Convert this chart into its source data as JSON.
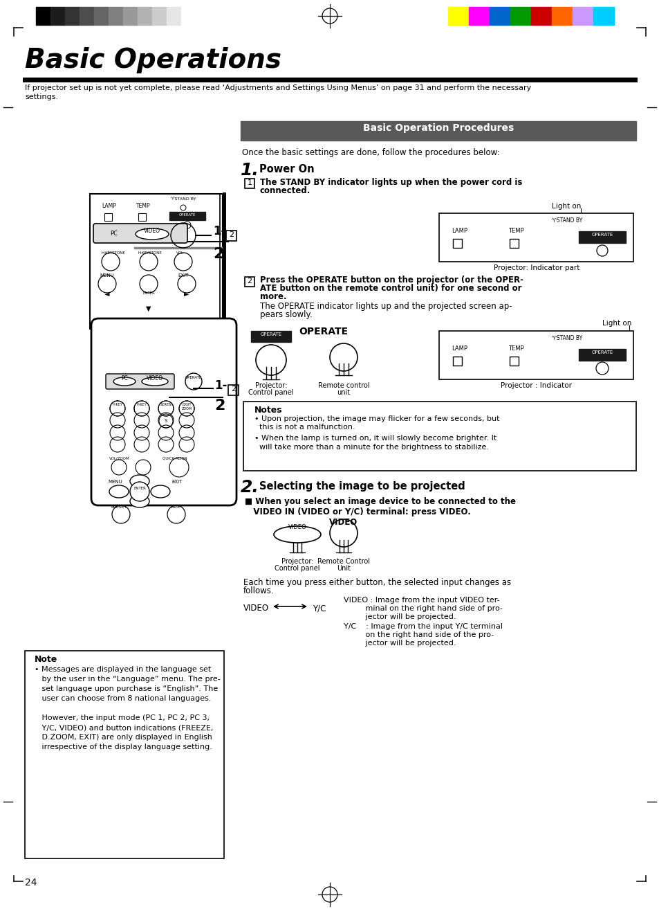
{
  "page_bg": "#ffffff",
  "title": "Basic Operations",
  "subtitle_line1": "If projector set up is not yet complete, please read ‘Adjustments and Settings Using Menus’ on page 31 and perform the necessary",
  "subtitle_line2": "settings.",
  "section_header_text": "Basic Operation Procedures",
  "once_text": "Once the basic settings are done, follow the procedures below:",
  "step1_label": "1.",
  "step1_text": "Power On",
  "sub1_text": "The STAND BY indicator lights up when the power cord is\nconnected.",
  "light_on": "Light on",
  "proj_ind_part": "Projector: Indicator part",
  "lamp_label": "LAMP",
  "temp_label": "TEMP",
  "operate_label": "OPERATE",
  "stand_by_label": "♈STAND BY",
  "sub2_bold": "Press the OPERATE button on the projector (or the OPER-\nATE button on the remote control unit) for one second or\nmore.",
  "sub2_body": "The OPERATE indicator lights up and the projected screen ap-\npears slowly.",
  "proj_ctrl": "Projector:\nControl panel",
  "remote_ctrl": "Remote control\nunit",
  "proj_ind2": "Projector : Indicator",
  "notes_title": "Notes",
  "note1": "• Upon projection, the image may flicker for a few seconds, but\n  this is not a malfunction.",
  "note2": "• When the lamp is turned on, it will slowly become brighter. It\n  will take more than a minute for the brightness to stabilize.",
  "step2_label": "2.",
  "step2_text": "Selecting the image to be projected",
  "video_sub": "■ When you select an image device to be connected to the\n   VIDEO IN (VIDEO or Y/C) terminal: press VIDEO.",
  "video_label": "VIDEO",
  "proj_ctrl2": "Projector:\nControl panel",
  "remote_ctrl2": "Remote Control\nUnit",
  "each_time": "Each time you press either button, the selected input changes as\nfollows.",
  "video_yc_left": "VIDEO",
  "video_yc_right": "Y/C",
  "video_desc": "VIDEO : Image from the input VIDEO ter-\n         minal on the right hand side of pro-\n         jector will be projected.\nY/C    : Image from the input Y/C terminal\n         on the right hand side of the pro-\n         jector will be projected.",
  "note_box_title": "Note",
  "note_box_text": "• Messages are displayed in the language set\n   by the user in the “Language” menu. The pre-\n   set language upon purchase is “English”. The\n   user can choose from 8 national languages.\n\n   However, the input mode (PC 1, PC 2, PC 3,\n   Y/C, VIDEO) and button indications (FREEZE,\n   D.ZOOM, EXIT) are only displayed in English\n   irrespective of the display language setting.",
  "page_number": "24",
  "gs_colors": [
    "#000000",
    "#1c1c1c",
    "#333333",
    "#4d4d4d",
    "#666666",
    "#808080",
    "#999999",
    "#b3b3b3",
    "#cccccc",
    "#e6e6e6",
    "#ffffff"
  ],
  "cc_colors": [
    "#ffff00",
    "#ff00ff",
    "#0066cc",
    "#009900",
    "#cc0000",
    "#ff6600",
    "#cc99ff",
    "#00ccff"
  ],
  "section_bg": "#595959",
  "operate_bg": "#1a1a1a"
}
